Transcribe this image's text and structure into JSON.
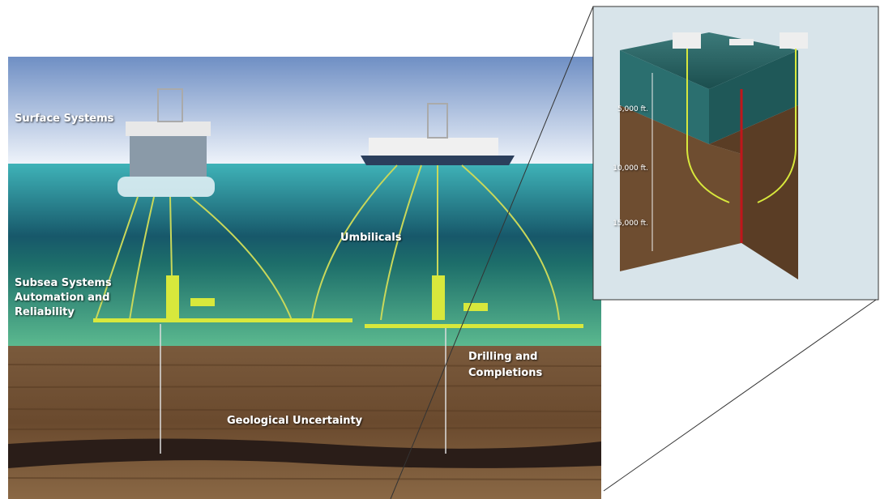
{
  "main_labels": [
    {
      "lines": [
        "Surface Systems"
      ]
    },
    {
      "lines": [
        "Umbilicals"
      ]
    },
    {
      "lines": [
        "Subsea Systems",
        "Automation and",
        "Reliability"
      ]
    },
    {
      "lines": [
        "Drilling and",
        "Completions"
      ]
    },
    {
      "lines": [
        "Geological Uncertainty"
      ]
    }
  ],
  "inset": {
    "depth_labels": [
      "5,000 ft.",
      "10,000 ft.",
      "15,000 ft."
    ]
  }
}
